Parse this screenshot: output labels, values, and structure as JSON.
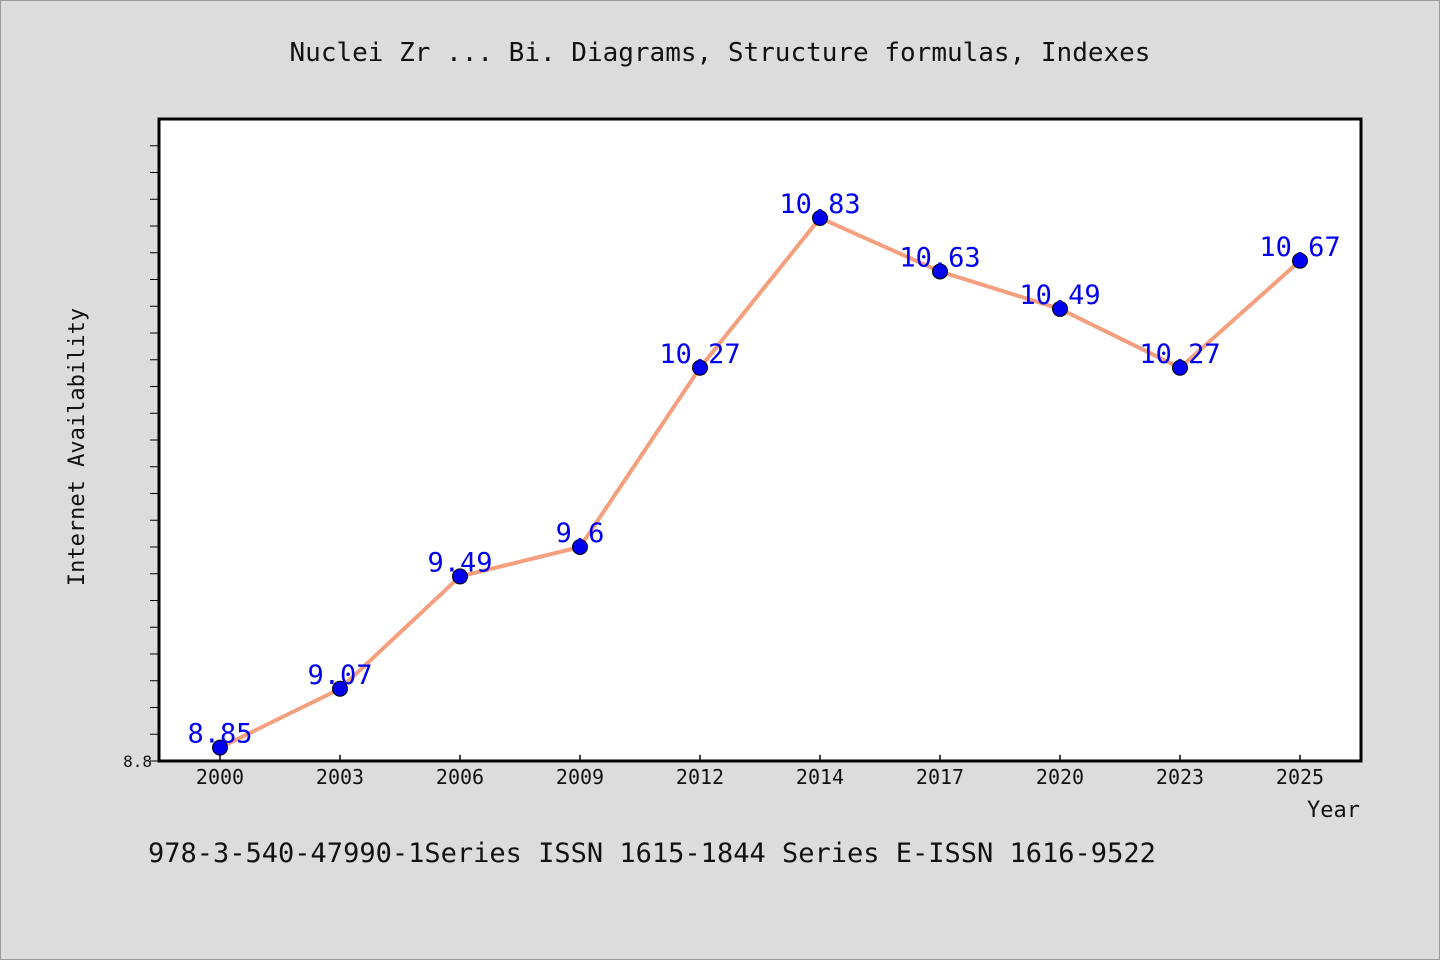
{
  "chart_data": {
    "type": "line",
    "title": "Nuclei Zr ... Bi. Diagrams, Structure formulas, Indexes",
    "xlabel": "Year",
    "ylabel": "Internet Availability",
    "categories": [
      "2000",
      "2003",
      "2006",
      "2009",
      "2012",
      "2014",
      "2017",
      "2020",
      "2023",
      "2025"
    ],
    "series": [
      {
        "values": [
          8.85,
          9.07,
          9.49,
          9.6,
          10.27,
          10.83,
          10.63,
          10.49,
          10.27,
          10.67
        ],
        "labels": [
          "8.85",
          "9.07",
          "9.49",
          "9.6",
          "10.27",
          "10.83",
          "10.63",
          "10.49",
          "10.27",
          "10.67"
        ],
        "color": "#f4a07e",
        "marker_color": "#0000ee"
      }
    ],
    "y_tick_label": "8.8",
    "ylim": [
      8.8,
      11.2
    ],
    "grid": false,
    "footer": "978-3-540-47990-1Series ISSN 1615-1844 Series E-ISSN 1616-9522"
  },
  "colors": {
    "background": "#dcdcdc",
    "plot_area": "#ffffff",
    "line": "#f4a07e",
    "marker": "#0000ee",
    "data_label": "#0000ee"
  }
}
